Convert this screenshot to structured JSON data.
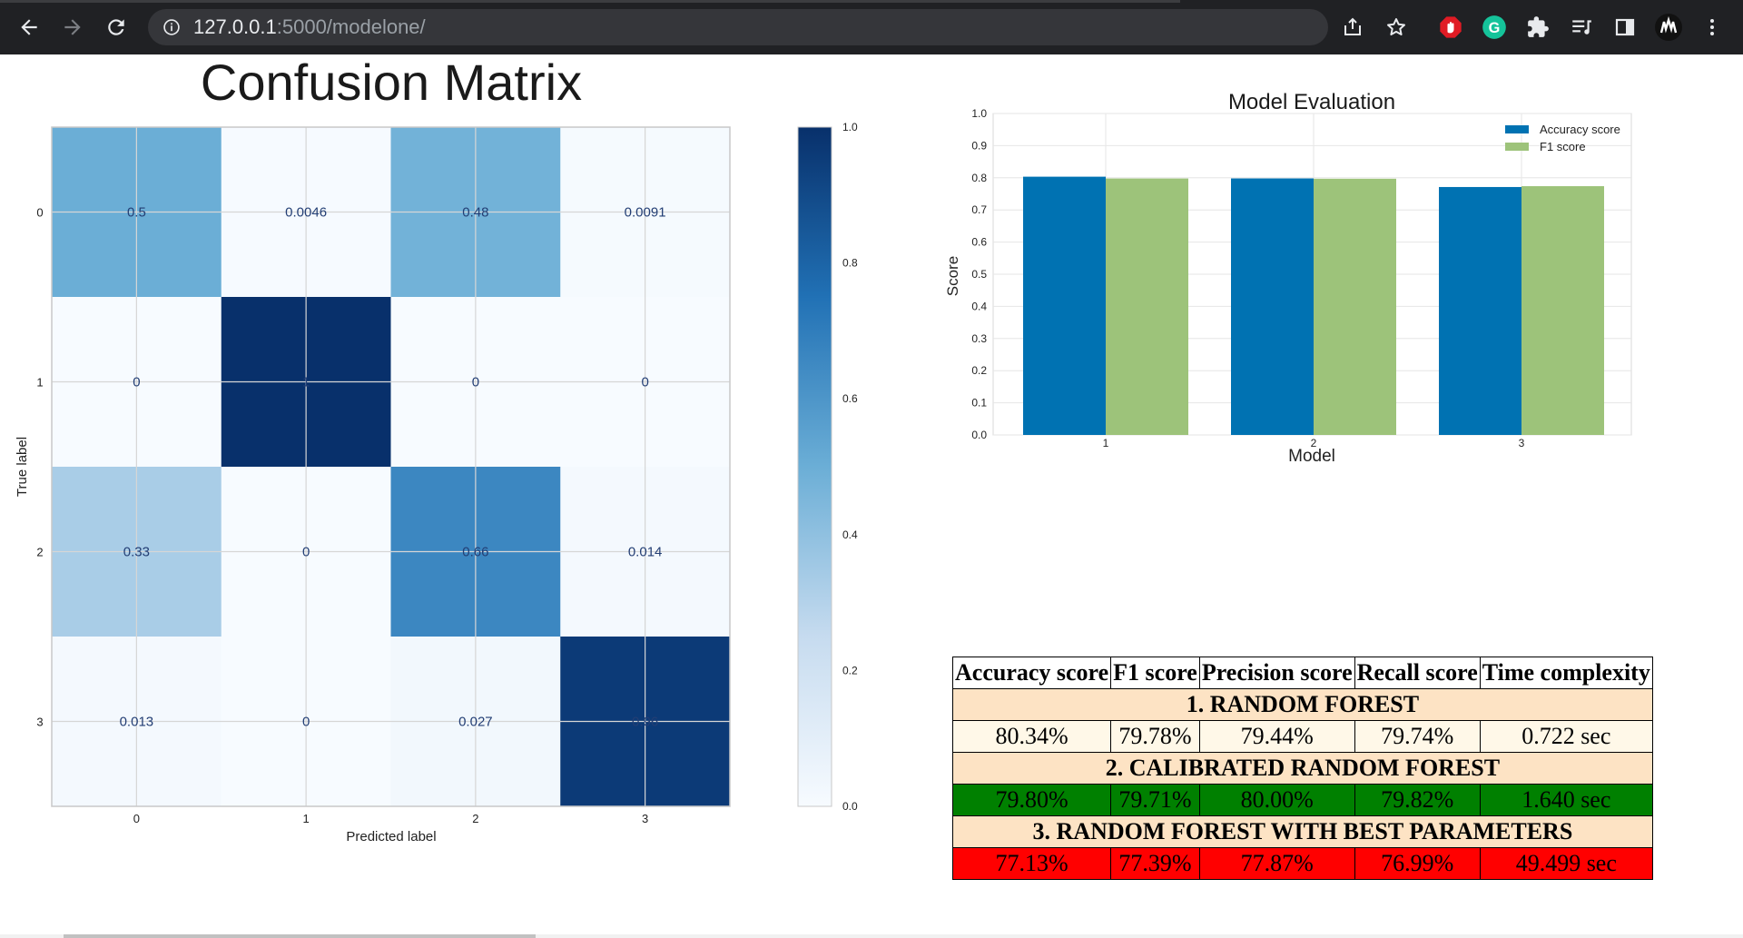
{
  "browser": {
    "url_host": "127.0.0.1",
    "url_path": ":5000/modelone/",
    "icons": [
      "back-icon",
      "forward-icon",
      "reload-icon",
      "info-icon",
      "share-icon",
      "star-icon",
      "adblock-icon",
      "grammarly-icon",
      "extensions-icon",
      "reading-list-icon",
      "side-panel-icon",
      "profile-avatar",
      "menu-icon"
    ],
    "grammarly_letter": "G"
  },
  "confusion": {
    "title": "Confusion Matrix",
    "xlabel": "Predicted label",
    "ylabel": "True label",
    "x_ticks": [
      "0",
      "1",
      "2",
      "3"
    ],
    "y_ticks": [
      "0",
      "1",
      "2",
      "3"
    ],
    "cells": [
      [
        "0.5",
        "0.0046",
        "0.48",
        "0.0091"
      ],
      [
        "0",
        "1",
        "0",
        "0"
      ],
      [
        "0.33",
        "0",
        "0.66",
        "0.014"
      ],
      [
        "0.013",
        "0",
        "0.027",
        "0.96"
      ]
    ],
    "colorbar_ticks": [
      "0.0",
      "0.2",
      "0.4",
      "0.6",
      "0.8",
      "1.0"
    ],
    "cmap_light": "#f7fbff",
    "cmap_dark": "#08306b"
  },
  "chart_data": {
    "type": "bar",
    "title": "Model Evaluation",
    "xlabel": "Model",
    "ylabel": "Score",
    "categories": [
      "1",
      "2",
      "3"
    ],
    "ylim": [
      0,
      1.0
    ],
    "y_ticks": [
      "0.0",
      "0.1",
      "0.2",
      "0.3",
      "0.4",
      "0.5",
      "0.6",
      "0.7",
      "0.8",
      "0.9",
      "1.0"
    ],
    "grid": true,
    "legend_position": "top-right",
    "series": [
      {
        "name": "Accuracy score",
        "color": "#0072b2",
        "values": [
          0.8034,
          0.798,
          0.7713
        ]
      },
      {
        "name": "F1 score",
        "color": "#9dc37a",
        "values": [
          0.7978,
          0.7971,
          0.7739
        ]
      }
    ]
  },
  "table": {
    "headers": [
      "Accuracy score",
      "F1 score",
      "Precision score",
      "Recall score",
      "Time complexity"
    ],
    "models": [
      {
        "title": "1. RANDOM FOREST",
        "values": [
          "80.34%",
          "79.78%",
          "79.44%",
          "79.74%",
          "0.722 sec"
        ],
        "row_color": "#fff8e8"
      },
      {
        "title": "2. CALIBRATED RANDOM FOREST",
        "values": [
          "79.80%",
          "79.71%",
          "80.00%",
          "79.82%",
          "1.640 sec"
        ],
        "row_color": "#008000"
      },
      {
        "title": "3. RANDOM FOREST WITH BEST PARAMETERS",
        "values": [
          "77.13%",
          "77.39%",
          "77.87%",
          "76.99%",
          "49.499 sec"
        ],
        "row_color": "#ff0000"
      }
    ]
  }
}
